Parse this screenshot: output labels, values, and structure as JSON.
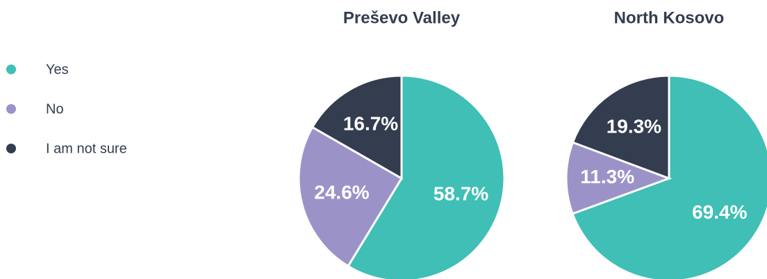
{
  "chart_data": [
    {
      "type": "pie",
      "title": "Preševo Valley",
      "categories": [
        "Yes",
        "No",
        "I am not sure"
      ],
      "values": [
        58.7,
        24.6,
        16.7
      ],
      "value_labels": [
        "58.7%",
        "24.6%",
        "16.7%"
      ],
      "colors": [
        "#3fbfb5",
        "#9b93c8",
        "#333d4f"
      ]
    },
    {
      "type": "pie",
      "title": "North Kosovo",
      "categories": [
        "Yes",
        "No",
        "I am not sure"
      ],
      "values": [
        69.4,
        11.3,
        19.3
      ],
      "value_labels": [
        "69.4%",
        "11.3%",
        "19.3%"
      ],
      "colors": [
        "#3fbfb5",
        "#9b93c8",
        "#333d4f"
      ]
    }
  ]
}
